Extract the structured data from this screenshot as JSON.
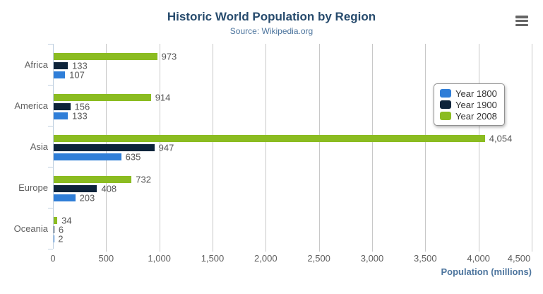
{
  "chart_data": {
    "type": "bar",
    "orientation": "horizontal",
    "title": "Historic World Population by Region",
    "subtitle": "Source: Wikipedia.org",
    "categories": [
      "Africa",
      "America",
      "Asia",
      "Europe",
      "Oceania"
    ],
    "series": [
      {
        "name": "Year 1800",
        "color": "#2f7ed8",
        "values": [
          107,
          133,
          635,
          203,
          2
        ]
      },
      {
        "name": "Year 1900",
        "color": "#0d233a",
        "values": [
          133,
          156,
          947,
          408,
          6
        ]
      },
      {
        "name": "Year 2008",
        "color": "#8bbc21",
        "values": [
          973,
          914,
          4054,
          732,
          34
        ]
      }
    ],
    "bar_order_top_to_bottom": [
      "Year 2008",
      "Year 1900",
      "Year 1800"
    ],
    "value_axis": {
      "label": "Population (millions)",
      "min": 0,
      "max": 4500,
      "tick_interval": 500,
      "tick_labels": [
        "0",
        "500",
        "1,000",
        "1,500",
        "2,000",
        "2,500",
        "3,000",
        "3,500",
        "4,000",
        "4,500"
      ]
    },
    "legend": {
      "position": "right",
      "items": [
        "Year 1800",
        "Year 1900",
        "Year 2008"
      ]
    },
    "grid": true,
    "data_labels": true
  },
  "toolbar": {
    "context_menu_icon": "hamburger-icon"
  },
  "colors": {
    "title": "#274b6d",
    "subtitle": "#4d759e",
    "axis_title": "#4d759e",
    "axis_labels": "#606060",
    "data_labels": "#555555",
    "gridline": "#c8c8c8",
    "axis_line": "#c0d0e0",
    "legend_border": "#909090",
    "legend_text": "#333333",
    "series": [
      "#2f7ed8",
      "#0d233a",
      "#8bbc21"
    ]
  }
}
